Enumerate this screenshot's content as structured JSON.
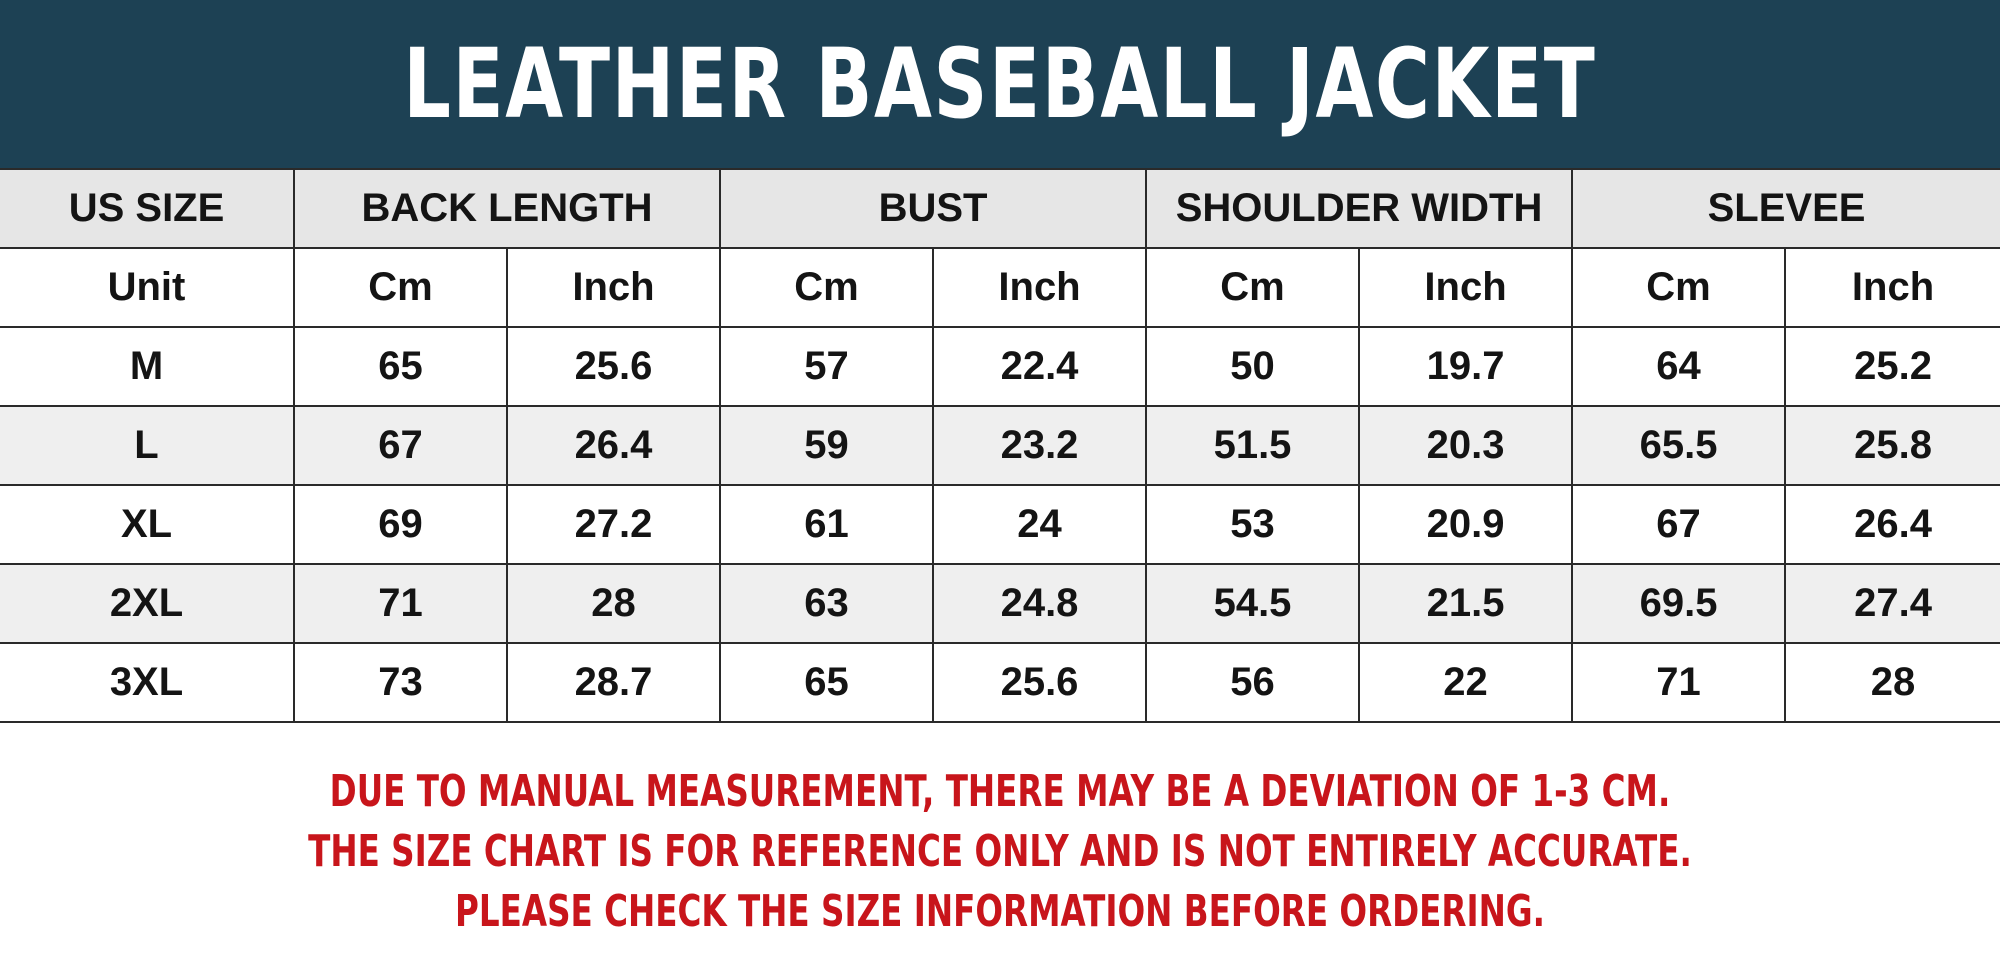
{
  "title": "LEATHER BASEBALL JACKET",
  "colors": {
    "header_bg": "#1d4154",
    "header_text": "#ffffff",
    "notice_text": "#c8151b",
    "row_alt": "#efefef",
    "header_row": "#e6e6e6"
  },
  "table": {
    "headers": [
      "US SIZE",
      "BACK LENGTH",
      "BUST",
      "SHOULDER WIDTH",
      "SLEVEE"
    ],
    "units": [
      "Unit",
      "Cm",
      "Inch",
      "Cm",
      "Inch",
      "Cm",
      "Inch",
      "Cm",
      "Inch"
    ],
    "rows": [
      [
        "M",
        "65",
        "25.6",
        "57",
        "22.4",
        "50",
        "19.7",
        "64",
        "25.2"
      ],
      [
        "L",
        "67",
        "26.4",
        "59",
        "23.2",
        "51.5",
        "20.3",
        "65.5",
        "25.8"
      ],
      [
        "XL",
        "69",
        "27.2",
        "61",
        "24",
        "53",
        "20.9",
        "67",
        "26.4"
      ],
      [
        "2XL",
        "71",
        "28",
        "63",
        "24.8",
        "54.5",
        "21.5",
        "69.5",
        "27.4"
      ],
      [
        "3XL",
        "73",
        "28.7",
        "65",
        "25.6",
        "56",
        "22",
        "71",
        "28"
      ]
    ]
  },
  "notice": [
    "DUE TO MANUAL MEASUREMENT, THERE MAY BE A DEVIATION OF 1-3 CM.",
    "THE SIZE CHART IS FOR REFERENCE ONLY AND IS NOT ENTIRELY ACCURATE.",
    "PLEASE CHECK THE SIZE INFORMATION BEFORE ORDERING."
  ]
}
